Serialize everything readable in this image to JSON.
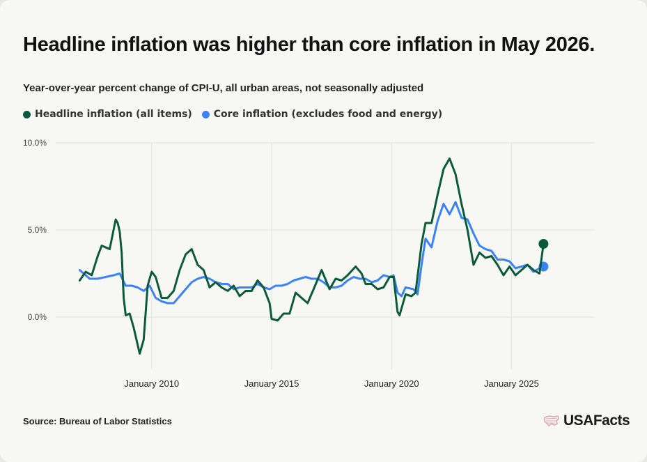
{
  "title": "Headline inflation was higher than core inflation in May 2026.",
  "subtitle": "Year-over-year percent change of CPI-U, all urban areas, not seasonally adjusted",
  "source": "Source: Bureau of Labor Statistics",
  "logo_text": "USAFacts",
  "logo_icon": "usa-flag-icon",
  "colors": {
    "headline": "#0b5a3e",
    "core": "#3b82f6",
    "grid": "#e3e3de",
    "axis_text": "#444444",
    "logo_accent": "#e0a4b8"
  },
  "chart_data": {
    "type": "line",
    "title": "Headline inflation was higher than core inflation in May 2026.",
    "subtitle": "Year-over-year percent change of CPI-U, all urban areas, not seasonally adjusted",
    "x_domain": [
      "2006-01",
      "2028-07"
    ],
    "ylim": [
      -3,
      10
    ],
    "y_ticks": [
      0,
      5,
      10
    ],
    "y_tick_labels": [
      "0.0%",
      "5.0%",
      "10.0%"
    ],
    "x_ticks": [
      "2010-01",
      "2015-01",
      "2020-01",
      "2025-01"
    ],
    "x_tick_labels": [
      "January 2010",
      "January 2015",
      "January 2020",
      "January 2025"
    ],
    "grid": true,
    "legend_position": "top-left",
    "series": [
      {
        "name": "Headline inflation (all items)",
        "color": "#0b5a3e",
        "points": [
          [
            "2007-01",
            2.1
          ],
          [
            "2007-04",
            2.6
          ],
          [
            "2007-07",
            2.4
          ],
          [
            "2007-10",
            3.5
          ],
          [
            "2007-12",
            4.1
          ],
          [
            "2008-02",
            4.0
          ],
          [
            "2008-04",
            3.9
          ],
          [
            "2008-07",
            5.6
          ],
          [
            "2008-08",
            5.4
          ],
          [
            "2008-09",
            4.9
          ],
          [
            "2008-10",
            3.7
          ],
          [
            "2008-11",
            1.1
          ],
          [
            "2008-12",
            0.1
          ],
          [
            "2009-02",
            0.2
          ],
          [
            "2009-04",
            -0.6
          ],
          [
            "2009-07",
            -2.1
          ],
          [
            "2009-09",
            -1.3
          ],
          [
            "2009-11",
            1.8
          ],
          [
            "2010-01",
            2.6
          ],
          [
            "2010-03",
            2.3
          ],
          [
            "2010-06",
            1.1
          ],
          [
            "2010-09",
            1.1
          ],
          [
            "2010-12",
            1.5
          ],
          [
            "2011-03",
            2.7
          ],
          [
            "2011-06",
            3.6
          ],
          [
            "2011-09",
            3.9
          ],
          [
            "2011-12",
            3.0
          ],
          [
            "2012-03",
            2.7
          ],
          [
            "2012-06",
            1.7
          ],
          [
            "2012-09",
            2.0
          ],
          [
            "2012-12",
            1.7
          ],
          [
            "2013-03",
            1.5
          ],
          [
            "2013-06",
            1.8
          ],
          [
            "2013-09",
            1.2
          ],
          [
            "2013-12",
            1.5
          ],
          [
            "2014-03",
            1.5
          ],
          [
            "2014-06",
            2.1
          ],
          [
            "2014-09",
            1.7
          ],
          [
            "2014-12",
            0.8
          ],
          [
            "2015-01",
            -0.1
          ],
          [
            "2015-04",
            -0.2
          ],
          [
            "2015-07",
            0.2
          ],
          [
            "2015-10",
            0.2
          ],
          [
            "2016-01",
            1.4
          ],
          [
            "2016-04",
            1.1
          ],
          [
            "2016-07",
            0.8
          ],
          [
            "2016-10",
            1.6
          ],
          [
            "2017-02",
            2.7
          ],
          [
            "2017-06",
            1.6
          ],
          [
            "2017-09",
            2.2
          ],
          [
            "2017-12",
            2.1
          ],
          [
            "2018-03",
            2.4
          ],
          [
            "2018-07",
            2.9
          ],
          [
            "2018-10",
            2.5
          ],
          [
            "2018-12",
            1.9
          ],
          [
            "2019-03",
            1.9
          ],
          [
            "2019-06",
            1.6
          ],
          [
            "2019-09",
            1.7
          ],
          [
            "2019-12",
            2.3
          ],
          [
            "2020-02",
            2.3
          ],
          [
            "2020-04",
            0.3
          ],
          [
            "2020-05",
            0.1
          ],
          [
            "2020-08",
            1.3
          ],
          [
            "2020-11",
            1.2
          ],
          [
            "2021-01",
            1.4
          ],
          [
            "2021-04",
            4.2
          ],
          [
            "2021-06",
            5.4
          ],
          [
            "2021-09",
            5.4
          ],
          [
            "2021-12",
            7.0
          ],
          [
            "2022-03",
            8.5
          ],
          [
            "2022-06",
            9.1
          ],
          [
            "2022-09",
            8.2
          ],
          [
            "2022-12",
            6.5
          ],
          [
            "2023-03",
            5.0
          ],
          [
            "2023-06",
            3.0
          ],
          [
            "2023-09",
            3.7
          ],
          [
            "2023-12",
            3.4
          ],
          [
            "2024-03",
            3.5
          ],
          [
            "2024-06",
            3.0
          ],
          [
            "2024-09",
            2.4
          ],
          [
            "2024-12",
            2.9
          ],
          [
            "2025-03",
            2.4
          ],
          [
            "2025-06",
            2.7
          ],
          [
            "2025-09",
            3.0
          ],
          [
            "2025-12",
            2.7
          ],
          [
            "2026-03",
            2.5
          ],
          [
            "2026-05",
            4.2
          ]
        ]
      },
      {
        "name": "Core inflation (excludes food and energy)",
        "color": "#3b82f6",
        "points": [
          [
            "2007-01",
            2.7
          ],
          [
            "2007-06",
            2.2
          ],
          [
            "2007-10",
            2.2
          ],
          [
            "2008-02",
            2.3
          ],
          [
            "2008-06",
            2.4
          ],
          [
            "2008-09",
            2.5
          ],
          [
            "2008-12",
            1.8
          ],
          [
            "2009-03",
            1.8
          ],
          [
            "2009-06",
            1.7
          ],
          [
            "2009-09",
            1.5
          ],
          [
            "2009-12",
            1.8
          ],
          [
            "2010-03",
            1.1
          ],
          [
            "2010-06",
            0.9
          ],
          [
            "2010-09",
            0.8
          ],
          [
            "2010-12",
            0.8
          ],
          [
            "2011-03",
            1.2
          ],
          [
            "2011-06",
            1.6
          ],
          [
            "2011-09",
            2.0
          ],
          [
            "2011-12",
            2.2
          ],
          [
            "2012-03",
            2.3
          ],
          [
            "2012-06",
            2.2
          ],
          [
            "2012-09",
            2.0
          ],
          [
            "2012-12",
            1.9
          ],
          [
            "2013-03",
            1.9
          ],
          [
            "2013-06",
            1.6
          ],
          [
            "2013-09",
            1.7
          ],
          [
            "2013-12",
            1.7
          ],
          [
            "2014-03",
            1.7
          ],
          [
            "2014-06",
            1.9
          ],
          [
            "2014-09",
            1.7
          ],
          [
            "2014-12",
            1.6
          ],
          [
            "2015-03",
            1.8
          ],
          [
            "2015-06",
            1.8
          ],
          [
            "2015-09",
            1.9
          ],
          [
            "2015-12",
            2.1
          ],
          [
            "2016-03",
            2.2
          ],
          [
            "2016-06",
            2.3
          ],
          [
            "2016-09",
            2.2
          ],
          [
            "2016-12",
            2.2
          ],
          [
            "2017-03",
            2.0
          ],
          [
            "2017-06",
            1.7
          ],
          [
            "2017-09",
            1.7
          ],
          [
            "2017-12",
            1.8
          ],
          [
            "2018-03",
            2.1
          ],
          [
            "2018-06",
            2.3
          ],
          [
            "2018-09",
            2.2
          ],
          [
            "2018-12",
            2.2
          ],
          [
            "2019-03",
            2.0
          ],
          [
            "2019-06",
            2.1
          ],
          [
            "2019-09",
            2.4
          ],
          [
            "2019-12",
            2.3
          ],
          [
            "2020-02",
            2.4
          ],
          [
            "2020-04",
            1.4
          ],
          [
            "2020-06",
            1.2
          ],
          [
            "2020-08",
            1.7
          ],
          [
            "2020-12",
            1.6
          ],
          [
            "2021-02",
            1.3
          ],
          [
            "2021-04",
            3.0
          ],
          [
            "2021-06",
            4.5
          ],
          [
            "2021-09",
            4.0
          ],
          [
            "2021-12",
            5.5
          ],
          [
            "2022-03",
            6.5
          ],
          [
            "2022-06",
            5.9
          ],
          [
            "2022-09",
            6.6
          ],
          [
            "2022-12",
            5.7
          ],
          [
            "2023-03",
            5.6
          ],
          [
            "2023-06",
            4.8
          ],
          [
            "2023-09",
            4.1
          ],
          [
            "2023-12",
            3.9
          ],
          [
            "2024-03",
            3.8
          ],
          [
            "2024-06",
            3.3
          ],
          [
            "2024-09",
            3.3
          ],
          [
            "2024-12",
            3.2
          ],
          [
            "2025-03",
            2.8
          ],
          [
            "2025-06",
            2.9
          ],
          [
            "2025-09",
            3.0
          ],
          [
            "2025-12",
            2.6
          ],
          [
            "2026-03",
            2.8
          ],
          [
            "2026-05",
            2.9
          ]
        ]
      }
    ]
  }
}
